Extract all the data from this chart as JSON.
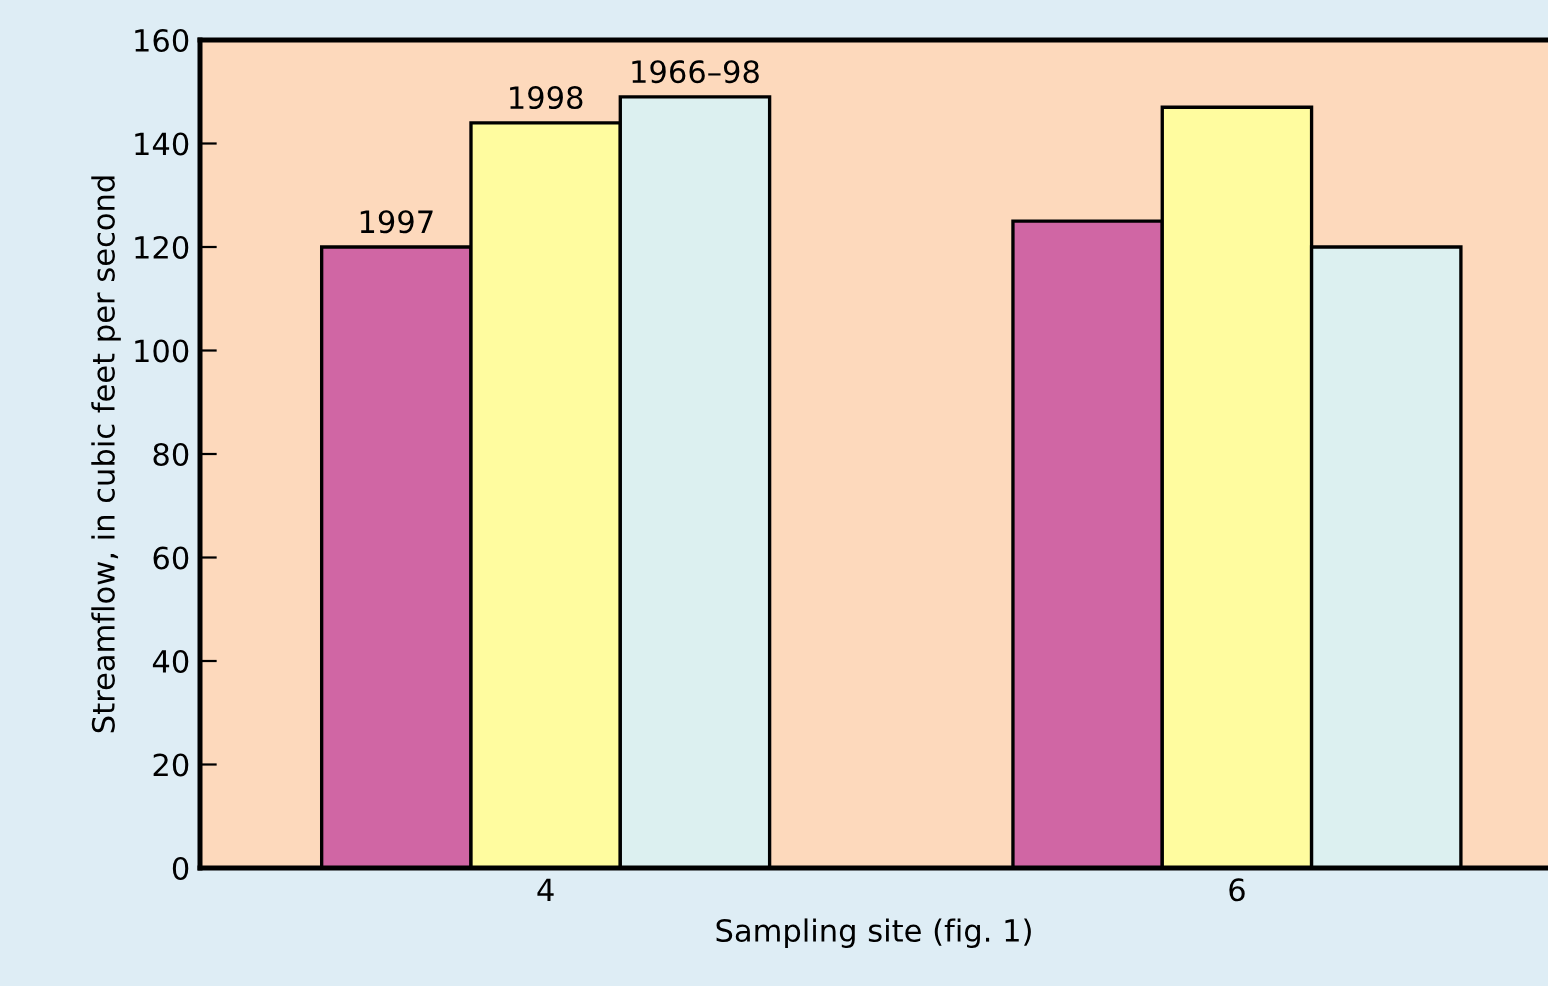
{
  "chart_data": {
    "type": "bar",
    "xlabel": "Sampling site (fig. 1)",
    "ylabel": "Streamflow, in cubic feet per second",
    "categories": [
      "4",
      "6"
    ],
    "series": [
      {
        "name": "1997",
        "color": "#d066a4",
        "values": [
          120,
          125
        ]
      },
      {
        "name": "1998",
        "color": "#fffc9f",
        "values": [
          144,
          147
        ]
      },
      {
        "name": "1966–98",
        "color": "#dcf0f0",
        "values": [
          149,
          120
        ]
      }
    ],
    "ylim": [
      0,
      160
    ],
    "yticks": [
      0,
      20,
      40,
      60,
      80,
      100,
      120,
      140,
      160
    ],
    "grid": false,
    "legend": false
  }
}
